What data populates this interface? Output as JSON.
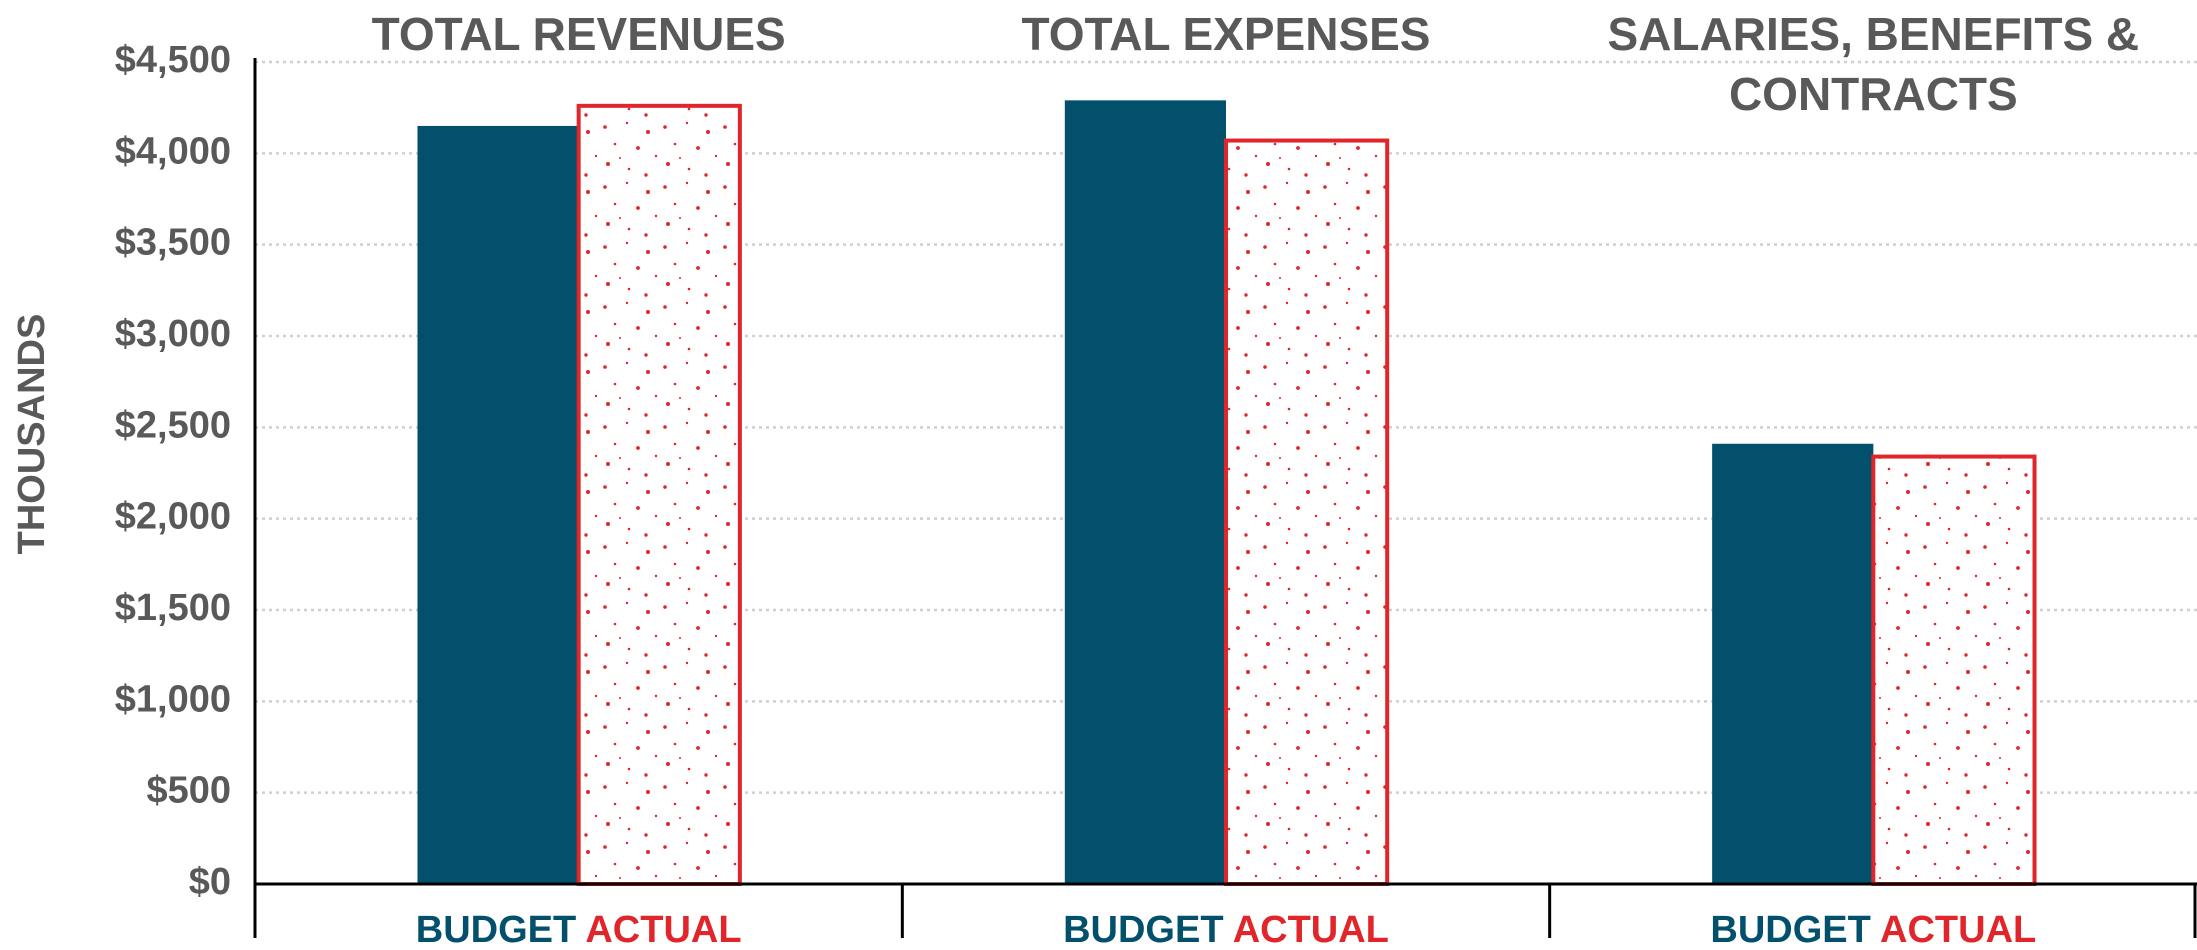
{
  "chart_data": {
    "type": "bar",
    "categories": [
      "TOTAL REVENUES",
      "TOTAL EXPENSES",
      "SALARIES, BENEFITS & CONTRACTS"
    ],
    "series": [
      {
        "name": "BUDGET",
        "color": "#02506b",
        "values": [
          4150,
          4290,
          2410
        ]
      },
      {
        "name": "ACTUAL",
        "color": "#e0262b",
        "values": [
          4260,
          4070,
          2340
        ]
      }
    ],
    "y_label": "THOUSANDS",
    "ylim": [
      0,
      4500
    ],
    "yticks": [
      {
        "value": 0,
        "label": "$0"
      },
      {
        "value": 500,
        "label": "$500"
      },
      {
        "value": 1000,
        "label": "$1,000"
      },
      {
        "value": 1500,
        "label": "$1,500"
      },
      {
        "value": 2000,
        "label": "$2,000"
      },
      {
        "value": 2500,
        "label": "$2,500"
      },
      {
        "value": 3000,
        "label": "$3,000"
      },
      {
        "value": 3500,
        "label": "$3,500"
      },
      {
        "value": 4000,
        "label": "$4,000"
      },
      {
        "value": 4500,
        "label": "$4,500"
      }
    ],
    "grid": true
  }
}
